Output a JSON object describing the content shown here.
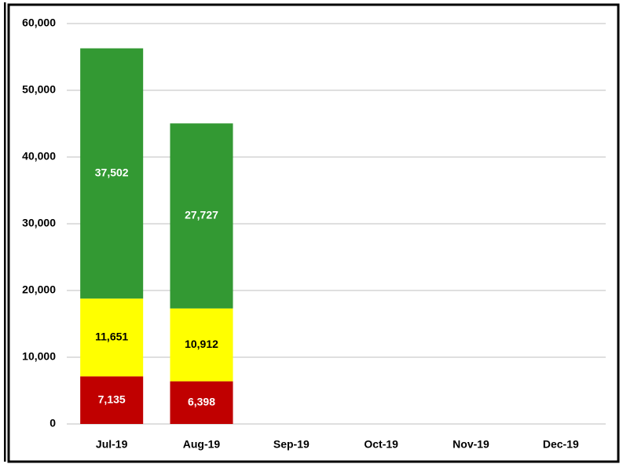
{
  "chart_data": {
    "type": "stacked_bar",
    "categories": [
      "Jul-19",
      "Aug-19",
      "Sep-19",
      "Oct-19",
      "Nov-19",
      "Dec-19"
    ],
    "series": [
      {
        "color": "#c00000",
        "label_color": "#ffffff",
        "values": [
          7135,
          6398,
          null,
          null,
          null,
          null
        ],
        "value_labels": [
          "7,135",
          "6,398",
          null,
          null,
          null,
          null
        ]
      },
      {
        "color": "#ffff00",
        "label_color": "#000000",
        "values": [
          11651,
          10912,
          null,
          null,
          null,
          null
        ],
        "value_labels": [
          "11,651",
          "10,912",
          null,
          null,
          null,
          null
        ]
      },
      {
        "color": "#339933",
        "label_color": "#ffffff",
        "values": [
          37502,
          27727,
          null,
          null,
          null,
          null
        ],
        "value_labels": [
          "37,502",
          "27,727",
          null,
          null,
          null,
          null
        ]
      }
    ],
    "ylim": [
      0,
      60000
    ],
    "yticks": [
      0,
      {
        "value": 10000,
        "label": "10,000"
      },
      {
        "value": 20000,
        "label": "20,000"
      },
      {
        "value": 30000,
        "label": "30,000"
      },
      {
        "value": 40000,
        "label": "40,000"
      },
      {
        "value": 50000,
        "label": "50,000"
      },
      {
        "value": 60000,
        "label": "60,000"
      }
    ],
    "grid": true
  }
}
